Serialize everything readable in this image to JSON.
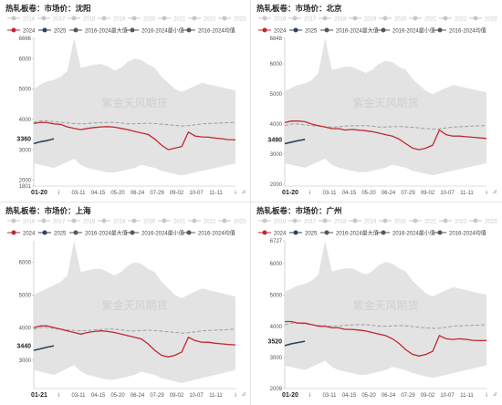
{
  "legend": {
    "row1": [
      "2016",
      "2017",
      "2018",
      "2019",
      "2020",
      "2021",
      "2022",
      "2023"
    ],
    "row2": [
      "2024",
      "2025",
      "2016-2024最大值",
      "2016-2024最小值",
      "2016-2024均值"
    ]
  },
  "colors": {
    "series_2024": "#c0282e",
    "series_2025": "#2f3f5c",
    "band": "#e3e3e3",
    "mean": "#9e9e9e",
    "legend_faded": "#c8c8c8",
    "legend_dark": "#555555",
    "watermark": "#cfcfcf"
  },
  "watermark": "紫金天风期货",
  "chart_data": [
    {
      "type": "line",
      "title": "热轧板卷：市场价：沈阳",
      "ylim": [
        1801,
        6666
      ],
      "y_ticks": [
        "6666",
        "6000",
        "5000",
        "4000",
        "3000",
        "2000",
        "1801"
      ],
      "x_ticks": [
        "01-20",
        "i",
        "03-11",
        "04-15",
        "05-20",
        "06-24",
        "07-29",
        "09-02",
        "10-07",
        "11-11",
        "i"
      ],
      "current_label": "3360",
      "series": [
        {
          "name": "2024",
          "values": [
            3860,
            3900,
            3890,
            3850,
            3830,
            3750,
            3700,
            3660,
            3700,
            3730,
            3750,
            3760,
            3740,
            3700,
            3660,
            3600,
            3550,
            3500,
            3350,
            3150,
            3000,
            3050,
            3100,
            3580,
            3450,
            3420,
            3410,
            3380,
            3360,
            3330,
            3320
          ]
        },
        {
          "name": "2025",
          "values": [
            3200,
            3260,
            3300,
            3360
          ]
        },
        {
          "name": "2016-2024最大值",
          "values": [
            5000,
            5150,
            5250,
            5300,
            5400,
            5600,
            6666,
            5700,
            5750,
            5800,
            5820,
            5750,
            5600,
            5700,
            5900,
            6000,
            5950,
            5800,
            5700,
            5400,
            5200,
            5000,
            4900,
            5000,
            5100,
            5200,
            5150,
            5100,
            5050,
            5000,
            4950
          ]
        },
        {
          "name": "2016-2024最小值",
          "values": [
            2550,
            2500,
            2450,
            2400,
            2500,
            2600,
            2700,
            2500,
            2400,
            2350,
            2300,
            2250,
            2250,
            2300,
            2350,
            2400,
            2500,
            2450,
            2400,
            2300,
            2250,
            2200,
            2150,
            2200,
            2250,
            2300,
            2350,
            2400,
            2450,
            2500,
            2550
          ]
        },
        {
          "name": "2016-2024均值",
          "values": [
            3900,
            3950,
            3950,
            3920,
            3900,
            3880,
            3860,
            3850,
            3860,
            3880,
            3890,
            3900,
            3900,
            3880,
            3850,
            3850,
            3860,
            3870,
            3860,
            3840,
            3820,
            3800,
            3780,
            3790,
            3820,
            3850,
            3860,
            3870,
            3880,
            3890,
            3900
          ]
        }
      ]
    },
    {
      "type": "line",
      "title": "热轧板卷：市场价：北京",
      "ylim": [
        1940,
        6848
      ],
      "y_ticks": [
        "6848",
        "6000",
        "5000",
        "4000",
        "3000",
        "2000"
      ],
      "x_ticks": [
        "01-20",
        "i",
        "03-11",
        "04-15",
        "05-20",
        "06-24",
        "07-29",
        "09-02",
        "10-07",
        "11-11",
        "i"
      ],
      "current_label": "3490",
      "series": [
        {
          "name": "2024",
          "values": [
            4050,
            4100,
            4100,
            4080,
            4000,
            3950,
            3900,
            3850,
            3850,
            3800,
            3820,
            3800,
            3780,
            3750,
            3700,
            3650,
            3600,
            3500,
            3350,
            3200,
            3150,
            3200,
            3300,
            3800,
            3650,
            3600,
            3600,
            3580,
            3560,
            3540,
            3520
          ]
        },
        {
          "name": "2025",
          "values": [
            3350,
            3400,
            3450,
            3490
          ]
        },
        {
          "name": "2016-2024最大值",
          "values": [
            5100,
            5200,
            5300,
            5350,
            5450,
            5700,
            6848,
            5800,
            5850,
            5900,
            5900,
            5800,
            5700,
            5800,
            6000,
            6100,
            6050,
            5900,
            5800,
            5500,
            5300,
            5100,
            5000,
            5100,
            5200,
            5300,
            5250,
            5200,
            5150,
            5100,
            5050
          ]
        },
        {
          "name": "2016-2024最小值",
          "values": [
            2700,
            2650,
            2600,
            2550,
            2650,
            2750,
            2850,
            2650,
            2550,
            2500,
            2450,
            2400,
            2400,
            2450,
            2500,
            2550,
            2650,
            2600,
            2550,
            2450,
            2400,
            2350,
            2300,
            2350,
            2400,
            2450,
            2500,
            2550,
            2600,
            2650,
            2700
          ]
        },
        {
          "name": "2016-2024均值",
          "values": [
            3950,
            4000,
            4000,
            3970,
            3950,
            3930,
            3910,
            3900,
            3910,
            3930,
            3940,
            3950,
            3950,
            3930,
            3900,
            3900,
            3910,
            3920,
            3910,
            3890,
            3870,
            3850,
            3830,
            3840,
            3870,
            3900,
            3910,
            3920,
            3930,
            3940,
            3950
          ]
        }
      ]
    },
    {
      "type": "line",
      "title": "热轧板卷：市场价：上海",
      "ylim": [
        2130,
        6658
      ],
      "y_ticks": [
        "6000",
        "5000",
        "4000",
        "3000"
      ],
      "x_ticks": [
        "01-21",
        "i",
        "03-11",
        "04-15",
        "05-20",
        "06-24",
        "07-29",
        "09-02",
        "10-07",
        "11-11",
        "i"
      ],
      "current_label": "3440",
      "series": [
        {
          "name": "2024",
          "values": [
            4000,
            4050,
            4050,
            4000,
            3950,
            3900,
            3850,
            3800,
            3850,
            3880,
            3900,
            3880,
            3850,
            3800,
            3750,
            3700,
            3650,
            3500,
            3300,
            3150,
            3100,
            3150,
            3250,
            3700,
            3600,
            3550,
            3550,
            3520,
            3500,
            3480,
            3470
          ]
        },
        {
          "name": "2025",
          "values": [
            3300,
            3350,
            3400,
            3440
          ]
        },
        {
          "name": "2016-2024最大值",
          "values": [
            5000,
            5100,
            5200,
            5300,
            5400,
            5600,
            6658,
            5700,
            5750,
            5800,
            5800,
            5700,
            5600,
            5700,
            5900,
            6000,
            5950,
            5800,
            5700,
            5400,
            5200,
            5000,
            4900,
            5000,
            5100,
            5200,
            5150,
            5100,
            5050,
            5000,
            4950
          ]
        },
        {
          "name": "2016-2024最小值",
          "values": [
            2700,
            2650,
            2600,
            2550,
            2650,
            2750,
            2850,
            2650,
            2550,
            2500,
            2450,
            2400,
            2400,
            2450,
            2500,
            2550,
            2650,
            2600,
            2550,
            2450,
            2400,
            2350,
            2300,
            2350,
            2400,
            2450,
            2500,
            2550,
            2600,
            2650,
            2700
          ]
        },
        {
          "name": "2016-2024均值",
          "values": [
            3950,
            4000,
            4000,
            3970,
            3950,
            3930,
            3910,
            3900,
            3910,
            3930,
            3940,
            3950,
            3950,
            3930,
            3900,
            3900,
            3910,
            3920,
            3910,
            3890,
            3870,
            3850,
            3830,
            3840,
            3870,
            3900,
            3910,
            3920,
            3930,
            3940,
            3950
          ]
        }
      ]
    },
    {
      "type": "line",
      "title": "热轧板卷：市场价：广州",
      "ylim": [
        2009,
        6727
      ],
      "y_ticks": [
        "6727",
        "6000",
        "5000",
        "4000",
        "3000",
        "2009"
      ],
      "x_ticks": [
        "01-20",
        "i",
        "03-11",
        "04-15",
        "05-20",
        "06-24",
        "07-29",
        "09-02",
        "10-07",
        "11-11",
        "i"
      ],
      "current_label": "3520",
      "series": [
        {
          "name": "2024",
          "values": [
            4150,
            4150,
            4100,
            4100,
            4050,
            4000,
            4000,
            3950,
            3950,
            3900,
            3900,
            3880,
            3850,
            3800,
            3750,
            3700,
            3600,
            3450,
            3250,
            3100,
            3050,
            3100,
            3200,
            3700,
            3600,
            3580,
            3600,
            3580,
            3550,
            3540,
            3540
          ]
        },
        {
          "name": "2025",
          "values": [
            3380,
            3440,
            3480,
            3520
          ]
        },
        {
          "name": "2016-2024最大值",
          "values": [
            5100,
            5200,
            5300,
            5350,
            5450,
            5650,
            6727,
            5750,
            5800,
            5850,
            5850,
            5750,
            5650,
            5750,
            5950,
            6050,
            6000,
            5850,
            5750,
            5450,
            5250,
            5050,
            4950,
            5050,
            5150,
            5250,
            5200,
            5150,
            5100,
            5050,
            5000
          ]
        },
        {
          "name": "2016-2024最小值",
          "values": [
            2750,
            2700,
            2650,
            2600,
            2700,
            2800,
            2900,
            2700,
            2600,
            2550,
            2500,
            2450,
            2450,
            2500,
            2550,
            2600,
            2700,
            2650,
            2600,
            2500,
            2450,
            2400,
            2350,
            2400,
            2450,
            2500,
            2550,
            2600,
            2650,
            2700,
            2750
          ]
        },
        {
          "name": "2016-2024均值",
          "values": [
            4050,
            4100,
            4100,
            4070,
            4050,
            4030,
            4010,
            4000,
            4010,
            4030,
            4040,
            4050,
            4050,
            4030,
            4000,
            4000,
            4010,
            4020,
            4010,
            3990,
            3970,
            3950,
            3930,
            3940,
            3970,
            4000,
            4010,
            4020,
            4030,
            4040,
            4050
          ]
        }
      ]
    }
  ]
}
